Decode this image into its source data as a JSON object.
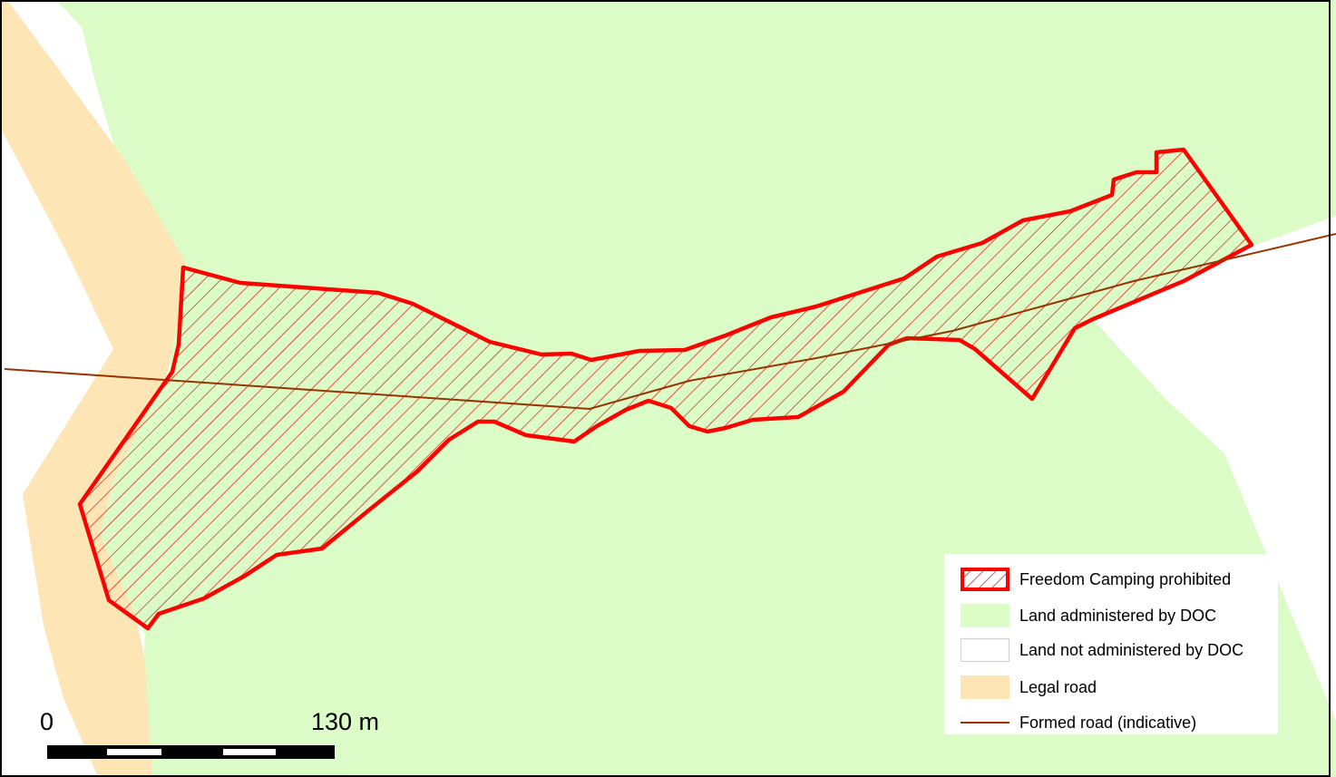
{
  "map": {
    "colors": {
      "doc_land": "#dcfcc7",
      "non_doc_land": "#ffffff",
      "legal_road": "#fde5b5",
      "camping_prohibited": "#ff0000",
      "formed_road": "#993300"
    }
  },
  "legend": {
    "items": [
      {
        "label": "Freedom Camping prohibited",
        "icon": "hatched-red-polygon-icon"
      },
      {
        "label": "Land administered by DOC",
        "icon": "green-fill-swatch-icon"
      },
      {
        "label": "Land not administered by DOC",
        "icon": "white-fill-swatch-icon"
      },
      {
        "label": "Legal road",
        "icon": "tan-fill-swatch-icon"
      },
      {
        "label": "Formed road (indicative)",
        "icon": "brown-line-icon"
      }
    ]
  },
  "scale_bar": {
    "start_label": "0",
    "end_label": "130 m"
  }
}
